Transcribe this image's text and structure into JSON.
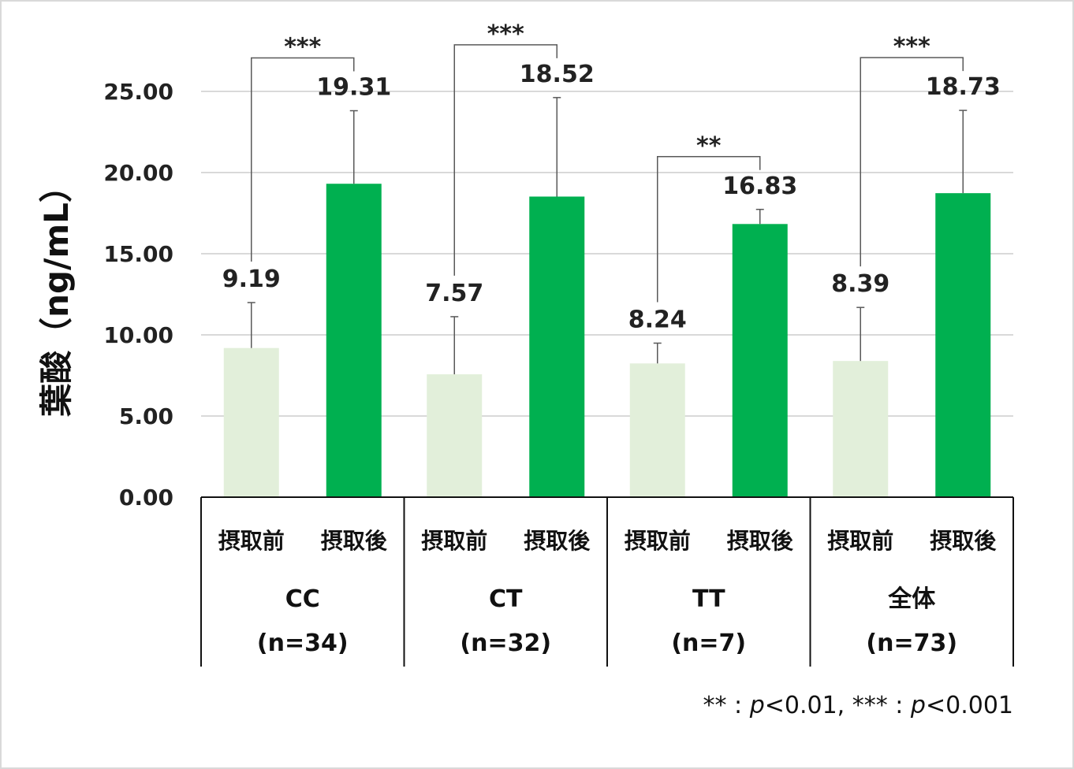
{
  "chart_data": {
    "type": "bar",
    "ylabel": "葉酸（ng/mL）",
    "ylim": [
      0,
      25
    ],
    "yticks": [
      "0.00",
      "5.00",
      "10.00",
      "15.00",
      "20.00",
      "25.00"
    ],
    "grid": true,
    "legend": "none",
    "groups": [
      {
        "name": "CC",
        "n": "(n=34)"
      },
      {
        "name": "CT",
        "n": "(n=32)"
      },
      {
        "name": "TT",
        "n": "(n=7)"
      },
      {
        "name": "全体",
        "n": "(n=73)"
      }
    ],
    "bar_labels": [
      "摂取前",
      "摂取後"
    ],
    "series": [
      {
        "name": "摂取前",
        "color": "#e2efda",
        "values": [
          9.19,
          7.57,
          8.24,
          8.39
        ],
        "error": [
          2.8,
          3.55,
          1.25,
          3.3
        ],
        "labels": [
          "9.19",
          "7.57",
          "8.24",
          "8.39"
        ]
      },
      {
        "name": "摂取後",
        "color": "#00b050",
        "values": [
          19.31,
          18.52,
          16.83,
          18.73
        ],
        "error": [
          4.5,
          6.1,
          0.9,
          5.1
        ],
        "labels": [
          "19.31",
          "18.52",
          "16.83",
          "18.73"
        ]
      }
    ],
    "significance": [
      "***",
      "***",
      "**",
      "***"
    ],
    "footnote": {
      "pre1": "** : ",
      "p1": "p",
      "post1": "<0.01, *** : ",
      "p2": "p",
      "post2": "<0.001"
    }
  }
}
